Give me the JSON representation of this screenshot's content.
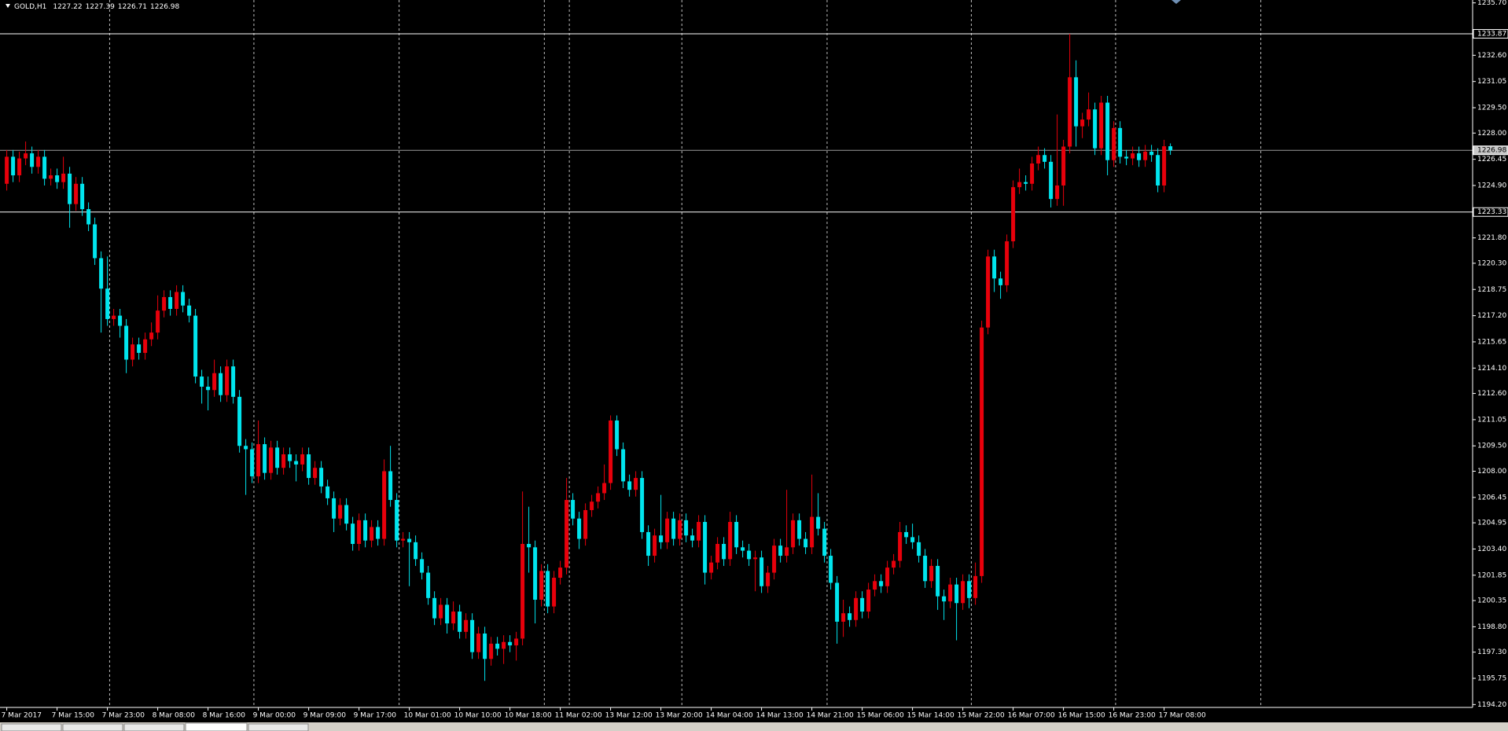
{
  "chart_data": {
    "type": "candlestick",
    "title": "GOLD,H1",
    "categories": [
      "7 Mar 2017",
      null,
      null,
      null,
      null,
      null,
      null,
      null,
      "7 Mar 15:00",
      null,
      null,
      null,
      null,
      null,
      null,
      null,
      "7 Mar 23:00",
      null,
      null,
      null,
      null,
      null,
      null,
      null,
      "8 Mar 08:00",
      null,
      null,
      null,
      null,
      null,
      null,
      null,
      "8 Mar 16:00",
      null,
      null,
      null,
      null,
      null,
      null,
      null,
      "9 Mar 00:00",
      null,
      null,
      null,
      null,
      null,
      null,
      null,
      "9 Mar 09:00",
      null,
      null,
      null,
      null,
      null,
      null,
      null,
      "9 Mar 17:00",
      null,
      null,
      null,
      null,
      null,
      null,
      null,
      "10 Mar 01:00",
      null,
      null,
      null,
      null,
      null,
      null,
      null,
      "10 Mar 10:00",
      null,
      null,
      null,
      null,
      null,
      null,
      null,
      "10 Mar 18:00",
      null,
      null,
      null,
      null,
      null,
      null,
      null,
      "11 Mar 02:00",
      null,
      null,
      null,
      null,
      null,
      null,
      null,
      "13 Mar 12:00",
      null,
      null,
      null,
      null,
      null,
      null,
      null,
      "13 Mar 20:00",
      null,
      null,
      null,
      null,
      null,
      null,
      null,
      "14 Mar 04:00",
      null,
      null,
      null,
      null,
      null,
      null,
      null,
      "14 Mar 13:00",
      null,
      null,
      null,
      null,
      null,
      null,
      null,
      "14 Mar 21:00",
      null,
      null,
      null,
      null,
      null,
      null,
      null,
      "15 Mar 06:00",
      null,
      null,
      null,
      null,
      null,
      null,
      null,
      "15 Mar 14:00",
      null,
      null,
      null,
      null,
      null,
      null,
      null,
      "15 Mar 22:00",
      null,
      null,
      null,
      null,
      null,
      null,
      null,
      "16 Mar 07:00",
      null,
      null,
      null,
      null,
      null,
      null,
      null,
      "16 Mar 15:00",
      null,
      null,
      null,
      null,
      null,
      null,
      null,
      "16 Mar 23:00",
      null,
      null,
      null,
      null,
      null,
      null,
      null,
      "17 Mar 08:00",
      null
    ],
    "open": [
      1225.0,
      1226.6,
      1225.5,
      1226.5,
      1226.8,
      1226.0,
      1226.6,
      1225.3,
      1225.5,
      1225.1,
      1225.6,
      1223.8,
      1225.0,
      1223.5,
      1222.6,
      1220.6,
      1218.8,
      1217.0,
      1217.2,
      1216.6,
      1214.6,
      1215.5,
      1215.0,
      1215.8,
      1216.2,
      1217.5,
      1218.3,
      1217.6,
      1218.6,
      1217.8,
      1217.2,
      1213.6,
      1213.0,
      1212.8,
      1213.8,
      1212.5,
      1214.2,
      1212.4,
      1209.5,
      1209.3,
      1207.7,
      1209.6,
      1207.9,
      1209.4,
      1208.2,
      1209.0,
      1208.6,
      1208.4,
      1209.0,
      1207.6,
      1208.2,
      1207.1,
      1206.4,
      1205.2,
      1206.0,
      1204.9,
      1203.7,
      1205.1,
      1203.9,
      1204.7,
      1204.0,
      1208.0,
      1206.3,
      1203.9,
      1204.0,
      1203.8,
      1202.8,
      1202.0,
      1200.5,
      1199.3,
      1200.1,
      1199.0,
      1199.7,
      1198.5,
      1199.2,
      1197.3,
      1198.4,
      1196.9,
      1197.8,
      1197.5,
      1197.9,
      1197.7,
      1198.1,
      1203.7,
      1203.5,
      1200.4,
      1202.1,
      1200.0,
      1201.7,
      1202.3,
      1206.3,
      1205.2,
      1204.0,
      1205.7,
      1206.2,
      1206.7,
      1207.3,
      1211.0,
      1209.3,
      1207.4,
      1206.9,
      1207.6,
      1204.4,
      1203.0,
      1204.2,
      1203.8,
      1205.2,
      1204.0,
      1205.1,
      1204.2,
      1203.9,
      1205.0,
      1202.0,
      1202.6,
      1203.7,
      1202.8,
      1205.0,
      1203.5,
      1203.3,
      1202.8,
      1202.9,
      1201.2,
      1202.0,
      1203.6,
      1203.0,
      1203.5,
      1205.1,
      1204.0,
      1203.5,
      1205.3,
      1204.6,
      1203.0,
      1201.4,
      1199.1,
      1199.6,
      1199.2,
      1200.5,
      1199.7,
      1201.0,
      1201.5,
      1201.2,
      1202.3,
      1202.7,
      1204.4,
      1204.1,
      1203.8,
      1203.0,
      1201.5,
      1202.4,
      1200.6,
      1200.3,
      1201.3,
      1200.2,
      1201.5,
      1200.5,
      1201.8,
      1216.5,
      1220.7,
      1219.4,
      1219.0,
      1221.6,
      1224.8,
      1225.1,
      1225.0,
      1226.2,
      1226.7,
      1226.3,
      1224.1,
      1224.9,
      1227.2,
      1231.3,
      1228.4,
      1228.8,
      1229.4,
      1227.1,
      1229.8,
      1226.4,
      1228.3,
      1226.6,
      1226.5,
      1226.8,
      1226.4,
      1226.9,
      1226.7,
      1224.9,
      1227.22
    ],
    "high": [
      1227.0,
      1227.0,
      1226.9,
      1227.5,
      1227.2,
      1227.0,
      1227.0,
      1225.9,
      1225.9,
      1226.6,
      1226.0,
      1225.4,
      1225.4,
      1223.9,
      1223.0,
      1221.0,
      1220.7,
      1217.6,
      1217.6,
      1217.0,
      1215.9,
      1215.9,
      1216.2,
      1216.8,
      1218.4,
      1218.7,
      1218.7,
      1219.0,
      1219.0,
      1218.2,
      1217.6,
      1214.0,
      1213.6,
      1214.6,
      1214.2,
      1214.6,
      1214.6,
      1212.8,
      1209.9,
      1209.7,
      1211.0,
      1210.0,
      1209.8,
      1209.8,
      1209.4,
      1209.4,
      1209.0,
      1209.4,
      1209.4,
      1208.6,
      1208.6,
      1207.5,
      1206.8,
      1206.4,
      1206.4,
      1205.3,
      1205.5,
      1205.5,
      1205.1,
      1205.1,
      1208.7,
      1209.5,
      1206.7,
      1204.4,
      1204.4,
      1204.2,
      1203.2,
      1202.4,
      1200.9,
      1200.5,
      1200.5,
      1200.3,
      1200.1,
      1199.6,
      1199.6,
      1198.8,
      1198.8,
      1198.2,
      1198.2,
      1198.3,
      1198.3,
      1198.5,
      1206.8,
      1205.9,
      1203.9,
      1202.5,
      1202.5,
      1202.1,
      1202.7,
      1207.6,
      1206.7,
      1205.6,
      1206.1,
      1206.6,
      1207.1,
      1208.4,
      1211.3,
      1211.3,
      1209.7,
      1207.8,
      1208.0,
      1208.0,
      1204.8,
      1204.6,
      1206.6,
      1205.6,
      1205.6,
      1205.5,
      1205.5,
      1204.6,
      1205.4,
      1205.4,
      1203.0,
      1204.1,
      1204.1,
      1205.6,
      1205.4,
      1203.9,
      1203.7,
      1203.3,
      1203.3,
      1202.4,
      1204.0,
      1204.0,
      1206.9,
      1205.5,
      1205.5,
      1204.4,
      1207.8,
      1206.7,
      1205.0,
      1203.4,
      1201.8,
      1200.4,
      1200.0,
      1200.9,
      1200.9,
      1201.4,
      1201.9,
      1201.9,
      1202.7,
      1203.1,
      1205.0,
      1204.8,
      1204.9,
      1204.2,
      1203.4,
      1202.8,
      1202.8,
      1201.0,
      1201.7,
      1201.7,
      1201.9,
      1201.9,
      1202.6,
      1216.9,
      1221.1,
      1221.1,
      1219.8,
      1222.0,
      1225.2,
      1225.9,
      1225.5,
      1226.6,
      1227.2,
      1227.1,
      1226.7,
      1229.1,
      1227.6,
      1233.87,
      1232.3,
      1229.2,
      1230.4,
      1229.8,
      1230.2,
      1230.2,
      1228.7,
      1228.7,
      1227.0,
      1227.2,
      1227.2,
      1227.3,
      1227.3,
      1227.1,
      1227.6,
      1227.39
    ],
    "low": [
      1224.6,
      1225.1,
      1225.1,
      1226.1,
      1225.6,
      1225.6,
      1224.9,
      1224.9,
      1224.7,
      1224.7,
      1222.4,
      1223.4,
      1223.1,
      1222.2,
      1220.2,
      1216.2,
      1216.6,
      1216.6,
      1215.9,
      1213.8,
      1214.2,
      1214.6,
      1214.6,
      1215.4,
      1215.8,
      1217.1,
      1217.2,
      1217.2,
      1217.4,
      1216.8,
      1213.2,
      1212.0,
      1211.6,
      1212.4,
      1212.1,
      1212.1,
      1212.0,
      1209.1,
      1206.6,
      1207.3,
      1207.3,
      1207.5,
      1207.5,
      1207.8,
      1207.8,
      1208.2,
      1207.4,
      1208.0,
      1207.2,
      1207.2,
      1206.7,
      1206.0,
      1204.4,
      1204.8,
      1204.5,
      1203.3,
      1203.3,
      1203.5,
      1203.5,
      1203.6,
      1203.6,
      1205.9,
      1203.5,
      1203.5,
      1201.2,
      1202.4,
      1201.6,
      1200.1,
      1198.9,
      1198.9,
      1198.4,
      1198.6,
      1198.1,
      1198.1,
      1196.9,
      1196.9,
      1195.6,
      1196.5,
      1197.1,
      1196.6,
      1197.3,
      1196.8,
      1197.7,
      1202.0,
      1199.0,
      1200.0,
      1199.6,
      1199.6,
      1201.3,
      1201.9,
      1204.8,
      1203.4,
      1203.6,
      1205.3,
      1205.8,
      1206.3,
      1206.9,
      1208.9,
      1207.0,
      1206.5,
      1206.5,
      1204.0,
      1202.4,
      1202.6,
      1203.4,
      1203.4,
      1203.6,
      1203.6,
      1203.8,
      1203.5,
      1203.5,
      1201.3,
      1201.6,
      1202.2,
      1202.4,
      1202.4,
      1203.1,
      1202.9,
      1202.4,
      1200.9,
      1200.8,
      1200.8,
      1201.6,
      1202.6,
      1202.6,
      1203.1,
      1203.6,
      1203.1,
      1203.1,
      1204.2,
      1202.6,
      1201.0,
      1197.8,
      1198.2,
      1198.8,
      1198.8,
      1199.3,
      1199.3,
      1200.6,
      1200.8,
      1200.8,
      1201.9,
      1202.3,
      1203.7,
      1203.4,
      1202.6,
      1201.1,
      1201.1,
      1199.8,
      1199.2,
      1199.9,
      1198.0,
      1199.8,
      1199.9,
      1200.1,
      1201.4,
      1216.1,
      1218.6,
      1218.2,
      1218.6,
      1221.2,
      1224.4,
      1224.6,
      1224.6,
      1225.8,
      1225.9,
      1223.6,
      1223.7,
      1223.7,
      1226.8,
      1227.2,
      1227.7,
      1228.4,
      1226.7,
      1226.7,
      1225.5,
      1226.0,
      1226.2,
      1226.1,
      1226.1,
      1226.0,
      1226.0,
      1226.3,
      1224.5,
      1224.5,
      1226.71
    ],
    "close": [
      1226.6,
      1225.5,
      1226.5,
      1226.8,
      1226.0,
      1226.6,
      1225.3,
      1225.5,
      1225.1,
      1225.6,
      1223.8,
      1225.0,
      1223.5,
      1222.6,
      1220.6,
      1218.8,
      1217.0,
      1217.2,
      1216.6,
      1214.6,
      1215.5,
      1215.0,
      1215.8,
      1216.2,
      1217.5,
      1218.3,
      1217.6,
      1218.6,
      1217.8,
      1217.2,
      1213.6,
      1213.0,
      1212.8,
      1213.8,
      1212.5,
      1214.2,
      1212.4,
      1209.5,
      1209.3,
      1207.7,
      1209.6,
      1207.9,
      1209.4,
      1208.2,
      1209.0,
      1208.6,
      1208.4,
      1209.0,
      1207.6,
      1208.2,
      1207.1,
      1206.4,
      1205.2,
      1206.0,
      1204.9,
      1203.7,
      1205.1,
      1203.9,
      1204.7,
      1204.0,
      1208.0,
      1206.3,
      1203.9,
      1204.0,
      1203.8,
      1202.8,
      1202.0,
      1200.5,
      1199.3,
      1200.1,
      1199.0,
      1199.7,
      1198.5,
      1199.2,
      1197.3,
      1198.4,
      1196.9,
      1197.8,
      1197.5,
      1197.9,
      1197.7,
      1198.1,
      1203.7,
      1203.5,
      1200.4,
      1202.1,
      1200.0,
      1201.7,
      1202.3,
      1206.3,
      1205.2,
      1204.0,
      1205.7,
      1206.2,
      1206.7,
      1207.3,
      1211.0,
      1209.3,
      1207.4,
      1206.9,
      1207.6,
      1204.4,
      1203.0,
      1204.2,
      1203.8,
      1205.2,
      1204.0,
      1205.1,
      1204.2,
      1203.9,
      1205.0,
      1202.0,
      1202.6,
      1203.7,
      1202.8,
      1205.0,
      1203.5,
      1203.3,
      1202.8,
      1202.9,
      1201.2,
      1202.0,
      1203.6,
      1203.0,
      1203.5,
      1205.1,
      1204.0,
      1203.5,
      1205.3,
      1204.6,
      1203.0,
      1201.4,
      1199.1,
      1199.6,
      1199.2,
      1200.5,
      1199.7,
      1201.0,
      1201.5,
      1201.2,
      1202.3,
      1202.7,
      1204.4,
      1204.1,
      1203.8,
      1203.0,
      1201.5,
      1202.4,
      1200.6,
      1200.3,
      1201.3,
      1200.2,
      1201.5,
      1200.5,
      1201.8,
      1216.5,
      1220.7,
      1219.4,
      1219.0,
      1221.6,
      1224.8,
      1225.1,
      1225.0,
      1226.2,
      1226.7,
      1226.3,
      1224.1,
      1224.9,
      1227.2,
      1231.3,
      1228.4,
      1228.8,
      1229.4,
      1227.1,
      1229.8,
      1226.4,
      1228.3,
      1226.6,
      1226.5,
      1226.8,
      1226.4,
      1226.9,
      1226.7,
      1224.9,
      1227.22,
      1226.98
    ],
    "up_color": "#e8000b",
    "down_color": "#00e5ee",
    "ylim": [
      1194.03,
      1235.87
    ],
    "yticks": [
      {
        "value": 1235.7,
        "label": "1235.70"
      },
      {
        "value": 1232.6,
        "label": "1232.60"
      },
      {
        "value": 1231.05,
        "label": "1231.05"
      },
      {
        "value": 1229.5,
        "label": "1229.50"
      },
      {
        "value": 1228,
        "label": "1228.00"
      },
      {
        "value": 1226.45,
        "label": "1226.45"
      },
      {
        "value": 1224.9,
        "label": "1224.90"
      },
      {
        "value": 1221.8,
        "label": "1221.80"
      },
      {
        "value": 1220.3,
        "label": "1220.30"
      },
      {
        "value": 1218.75,
        "label": "1218.75"
      },
      {
        "value": 1217.2,
        "label": "1217.20"
      },
      {
        "value": 1215.65,
        "label": "1215.65"
      },
      {
        "value": 1214.1,
        "label": "1214.10"
      },
      {
        "value": 1212.6,
        "label": "1212.60"
      },
      {
        "value": 1211.05,
        "label": "1211.05"
      },
      {
        "value": 1209.5,
        "label": "1209.50"
      },
      {
        "value": 1208,
        "label": "1208.00"
      },
      {
        "value": 1206.45,
        "label": "1206.45"
      },
      {
        "value": 1204.95,
        "label": "1204.95"
      },
      {
        "value": 1203.4,
        "label": "1203.40"
      },
      {
        "value": 1201.85,
        "label": "1201.85"
      },
      {
        "value": 1200.35,
        "label": "1200.35"
      },
      {
        "value": 1198.8,
        "label": "1198.80"
      },
      {
        "value": 1197.3,
        "label": "1197.30"
      },
      {
        "value": 1195.75,
        "label": "1195.75"
      },
      {
        "value": 1194.2,
        "label": "1194.20"
      }
    ],
    "hlines": [
      1233.87,
      1223.33
    ],
    "grid": false
  }
}
